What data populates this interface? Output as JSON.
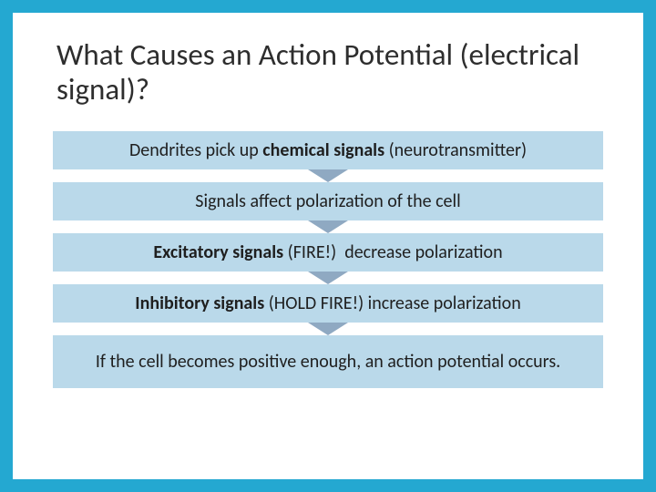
{
  "slide": {
    "title": "What Causes an Action Potential (electrical signal)?",
    "border_color": "#24a8d1",
    "title_color": "#2e2e2e",
    "box_bg": "#bad9ea",
    "box_text_color": "#1f1f1f",
    "arrow_color": "#8fa9c2",
    "steps": [
      {
        "html": "Dendrites pick up <b>chemical signals</b> (neurotransmitter)"
      },
      {
        "html": "Signals affect polarization of the cell"
      },
      {
        "html": "<b>Excitatory signals</b> (FIRE!)&nbsp; decrease polarization"
      },
      {
        "html": "<b>Inhibitory signals</b> (HOLD FIRE!) increase polarization"
      },
      {
        "html": "If the cell becomes positive enough, an action potential occurs."
      }
    ],
    "step_heights": [
      42,
      42,
      42,
      42,
      58
    ]
  }
}
